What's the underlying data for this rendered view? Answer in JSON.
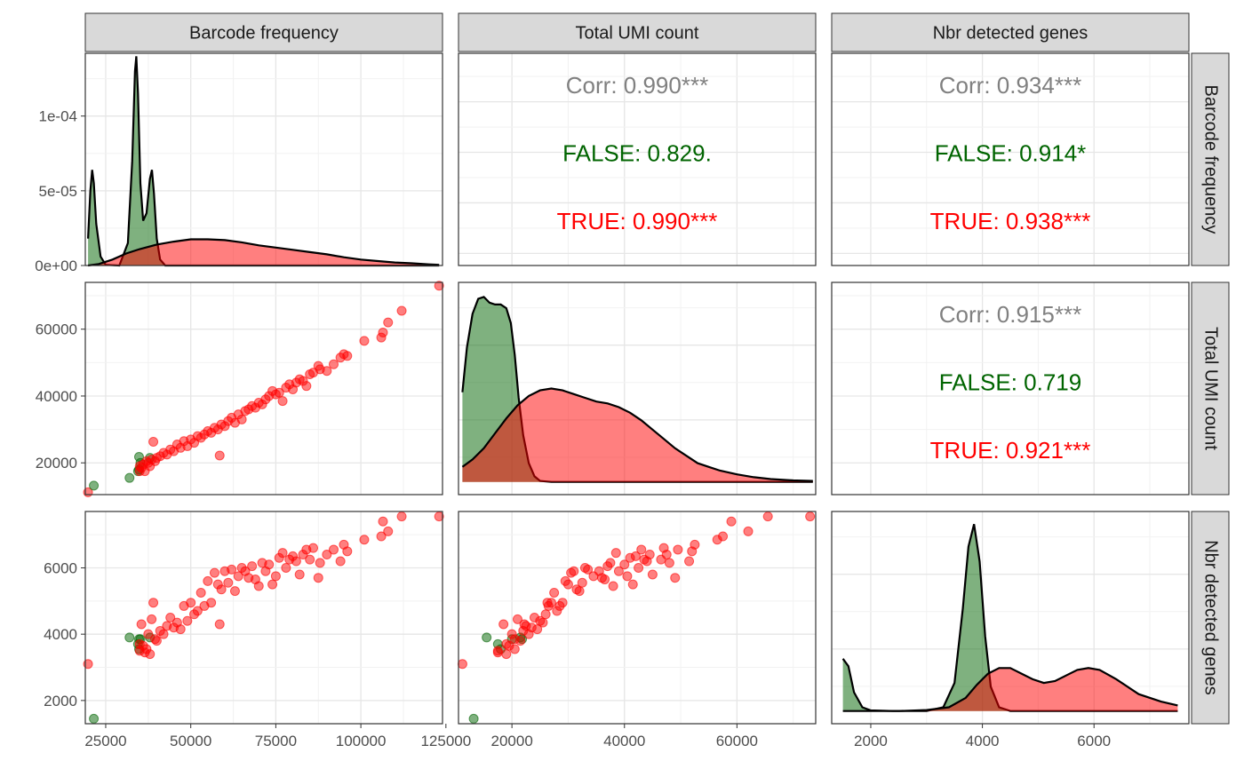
{
  "chart_data": {
    "type": "scatter",
    "variables": [
      "Barcode frequency",
      "Total UMI count",
      "Nbr detected genes"
    ],
    "groups": [
      {
        "name": "FALSE",
        "color": "#006400"
      },
      {
        "name": "TRUE",
        "color": "#ff0000"
      }
    ],
    "ranges": {
      "Barcode frequency": [
        19000,
        124000
      ],
      "Total UMI count": [
        10500,
        74000
      ],
      "Nbr detected genes": [
        1300,
        7700
      ]
    },
    "density_range": [
      0,
      0.000142
    ],
    "axis_ticks": {
      "x": {
        "Barcode frequency": [
          "25000",
          "50000",
          "75000",
          "100000",
          "125000"
        ],
        "Total UMI count": [
          "20000",
          "40000",
          "60000"
        ],
        "Nbr detected genes": [
          "2000",
          "4000",
          "6000"
        ]
      },
      "y": {
        "Barcode frequency": [
          "0e+00",
          "5e-05",
          "1e-04"
        ],
        "Total UMI count": [
          "20000",
          "40000",
          "60000"
        ],
        "Nbr detected genes": [
          "2000",
          "4000",
          "6000"
        ]
      }
    },
    "tick_values": {
      "Barcode frequency": [
        25000,
        50000,
        75000,
        100000,
        125000
      ],
      "Total UMI count": [
        20000,
        40000,
        60000
      ],
      "Nbr detected genes": [
        2000,
        4000,
        6000
      ],
      "density": [
        0,
        5e-05,
        0.0001
      ]
    },
    "correlations": [
      {
        "row": 0,
        "col": 1,
        "lines": [
          {
            "text": "Corr: 0.990***",
            "color": "#808080"
          },
          {
            "text": "FALSE: 0.829.",
            "color": "#006400"
          },
          {
            "text": "TRUE: 0.990***",
            "color": "#ff0000"
          }
        ]
      },
      {
        "row": 0,
        "col": 2,
        "lines": [
          {
            "text": "Corr: 0.934***",
            "color": "#808080"
          },
          {
            "text": "FALSE: 0.914*",
            "color": "#006400"
          },
          {
            "text": "TRUE: 0.938***",
            "color": "#ff0000"
          }
        ]
      },
      {
        "row": 1,
        "col": 2,
        "lines": [
          {
            "text": "Corr: 0.915***",
            "color": "#808080"
          },
          {
            "text": "FALSE: 0.719",
            "color": "#006400"
          },
          {
            "text": "TRUE: 0.921***",
            "color": "#ff0000"
          }
        ]
      }
    ],
    "densities": {
      "Barcode frequency": {
        "FALSE": [
          [
            19800,
            1.8e-05
          ],
          [
            20500,
            5e-05
          ],
          [
            21000,
            6.4e-05
          ],
          [
            21500,
            5.5e-05
          ],
          [
            22200,
            2.8e-05
          ],
          [
            23500,
            6e-06
          ],
          [
            25000,
            5e-07
          ],
          [
            29000,
            0.0
          ],
          [
            31500,
            1.5e-05
          ],
          [
            32800,
            7e-05
          ],
          [
            33600,
            0.00013
          ],
          [
            34000,
            0.00014
          ],
          [
            34500,
            0.000115
          ],
          [
            35200,
            5.5e-05
          ],
          [
            36000,
            3e-05
          ],
          [
            37000,
            3.5e-05
          ],
          [
            38000,
            5.8e-05
          ],
          [
            38600,
            6.4e-05
          ],
          [
            39200,
            4.8e-05
          ],
          [
            40000,
            1.8e-05
          ],
          [
            41000,
            4e-06
          ],
          [
            42500,
            0.0
          ],
          [
            123000,
            0.0
          ]
        ],
        "TRUE": [
          [
            19800,
            0.0
          ],
          [
            23000,
            1e-06
          ],
          [
            27000,
            4e-06
          ],
          [
            31000,
            8e-06
          ],
          [
            35000,
            1.1e-05
          ],
          [
            40000,
            1.4e-05
          ],
          [
            45000,
            1.6e-05
          ],
          [
            50000,
            1.75e-05
          ],
          [
            55000,
            1.75e-05
          ],
          [
            60000,
            1.7e-05
          ],
          [
            65000,
            1.55e-05
          ],
          [
            70000,
            1.35e-05
          ],
          [
            75000,
            1.2e-05
          ],
          [
            80000,
            1.05e-05
          ],
          [
            85000,
            9e-06
          ],
          [
            90000,
            7.5e-06
          ],
          [
            95000,
            5.5e-06
          ],
          [
            100000,
            4e-06
          ],
          [
            105000,
            3e-06
          ],
          [
            110000,
            2e-06
          ],
          [
            115000,
            1.5e-06
          ],
          [
            120000,
            8e-07
          ],
          [
            123000,
            5e-07
          ]
        ]
      },
      "Total UMI count": {
        "FALSE": [
          [
            11200,
            0.48
          ],
          [
            12000,
            0.72
          ],
          [
            13000,
            0.9
          ],
          [
            14000,
            0.98
          ],
          [
            15000,
            0.99
          ],
          [
            16000,
            0.96
          ],
          [
            17000,
            0.95
          ],
          [
            18000,
            0.95
          ],
          [
            19000,
            0.93
          ],
          [
            19800,
            0.85
          ],
          [
            20500,
            0.68
          ],
          [
            21200,
            0.45
          ],
          [
            22000,
            0.25
          ],
          [
            23000,
            0.1
          ],
          [
            24000,
            0.03
          ],
          [
            25000,
            0.005
          ],
          [
            27000,
            0.0
          ],
          [
            73500,
            0.0
          ]
        ],
        "TRUE": [
          [
            11200,
            0.08
          ],
          [
            13000,
            0.12
          ],
          [
            15000,
            0.18
          ],
          [
            17000,
            0.26
          ],
          [
            19000,
            0.34
          ],
          [
            21000,
            0.41
          ],
          [
            23000,
            0.46
          ],
          [
            25000,
            0.49
          ],
          [
            27000,
            0.5
          ],
          [
            29000,
            0.49
          ],
          [
            31000,
            0.47
          ],
          [
            33000,
            0.45
          ],
          [
            35000,
            0.43
          ],
          [
            37000,
            0.42
          ],
          [
            39000,
            0.4
          ],
          [
            41000,
            0.37
          ],
          [
            43000,
            0.33
          ],
          [
            45000,
            0.28
          ],
          [
            47000,
            0.23
          ],
          [
            49000,
            0.18
          ],
          [
            51000,
            0.14
          ],
          [
            53000,
            0.1
          ],
          [
            55000,
            0.08
          ],
          [
            57000,
            0.06
          ],
          [
            60000,
            0.04
          ],
          [
            63000,
            0.025
          ],
          [
            66000,
            0.015
          ],
          [
            70000,
            0.008
          ],
          [
            73500,
            0.005
          ]
        ]
      },
      "Nbr detected genes": {
        "FALSE": [
          [
            1500,
            0.28
          ],
          [
            1600,
            0.24
          ],
          [
            1700,
            0.1
          ],
          [
            1850,
            0.02
          ],
          [
            2000,
            0.003
          ],
          [
            2400,
            0.0
          ],
          [
            3000,
            0.0
          ],
          [
            3300,
            0.02
          ],
          [
            3500,
            0.15
          ],
          [
            3650,
            0.55
          ],
          [
            3750,
            0.88
          ],
          [
            3850,
            1.0
          ],
          [
            3950,
            0.8
          ],
          [
            4050,
            0.4
          ],
          [
            4150,
            0.13
          ],
          [
            4300,
            0.02
          ],
          [
            4500,
            0.0
          ],
          [
            7500,
            0.0
          ]
        ],
        "TRUE": [
          [
            1500,
            0.0
          ],
          [
            2500,
            0.0
          ],
          [
            3000,
            0.005
          ],
          [
            3400,
            0.02
          ],
          [
            3700,
            0.07
          ],
          [
            3900,
            0.14
          ],
          [
            4100,
            0.2
          ],
          [
            4300,
            0.23
          ],
          [
            4500,
            0.23
          ],
          [
            4700,
            0.2
          ],
          [
            4900,
            0.17
          ],
          [
            5100,
            0.15
          ],
          [
            5300,
            0.16
          ],
          [
            5500,
            0.19
          ],
          [
            5700,
            0.22
          ],
          [
            5900,
            0.23
          ],
          [
            6100,
            0.22
          ],
          [
            6400,
            0.17
          ],
          [
            6800,
            0.09
          ],
          [
            7200,
            0.05
          ],
          [
            7500,
            0.03
          ]
        ]
      }
    },
    "points": [
      {
        "group": "TRUE",
        "bf": 19800,
        "umi": 11200,
        "genes": 3100
      },
      {
        "group": "FALSE",
        "bf": 21500,
        "umi": 13200,
        "genes": 1450
      },
      {
        "group": "FALSE",
        "bf": 32000,
        "umi": 15500,
        "genes": 3900
      },
      {
        "group": "FALSE",
        "bf": 34500,
        "umi": 17500,
        "genes": 3700
      },
      {
        "group": "FALSE",
        "bf": 34800,
        "umi": 18000,
        "genes": 3550
      },
      {
        "group": "FALSE",
        "bf": 34800,
        "umi": 21800,
        "genes": 3850
      },
      {
        "group": "FALSE",
        "bf": 35200,
        "umi": 20000,
        "genes": 3850
      },
      {
        "group": "FALSE",
        "bf": 38000,
        "umi": 21500,
        "genes": 3900
      },
      {
        "group": "TRUE",
        "bf": 35000,
        "umi": 17500,
        "genes": 3500
      },
      {
        "group": "TRUE",
        "bf": 35000,
        "umi": 19000,
        "genes": 3700
      },
      {
        "group": "TRUE",
        "bf": 35500,
        "umi": 18500,
        "genes": 4300
      },
      {
        "group": "TRUE",
        "bf": 36000,
        "umi": 19500,
        "genes": 3650
      },
      {
        "group": "TRUE",
        "bf": 36500,
        "umi": 17500,
        "genes": 3450
      },
      {
        "group": "TRUE",
        "bf": 37000,
        "umi": 20500,
        "genes": 3550
      },
      {
        "group": "TRUE",
        "bf": 37500,
        "umi": 20000,
        "genes": 4000
      },
      {
        "group": "TRUE",
        "bf": 38000,
        "umi": 19000,
        "genes": 3400
      },
      {
        "group": "TRUE",
        "bf": 38500,
        "umi": 21000,
        "genes": 4450
      },
      {
        "group": "TRUE",
        "bf": 39000,
        "umi": 26300,
        "genes": 4950
      },
      {
        "group": "TRUE",
        "bf": 39500,
        "umi": 20500,
        "genes": 3850
      },
      {
        "group": "TRUE",
        "bf": 40000,
        "umi": 21500,
        "genes": 3800
      },
      {
        "group": "TRUE",
        "bf": 41000,
        "umi": 22000,
        "genes": 4100
      },
      {
        "group": "TRUE",
        "bf": 42000,
        "umi": 23000,
        "genes": 4000
      },
      {
        "group": "TRUE",
        "bf": 43000,
        "umi": 22500,
        "genes": 4250
      },
      {
        "group": "TRUE",
        "bf": 44000,
        "umi": 24000,
        "genes": 4500
      },
      {
        "group": "TRUE",
        "bf": 45000,
        "umi": 23500,
        "genes": 4200
      },
      {
        "group": "TRUE",
        "bf": 46000,
        "umi": 25500,
        "genes": 4350
      },
      {
        "group": "TRUE",
        "bf": 47000,
        "umi": 24500,
        "genes": 4150
      },
      {
        "group": "TRUE",
        "bf": 48000,
        "umi": 26500,
        "genes": 4850
      },
      {
        "group": "TRUE",
        "bf": 49000,
        "umi": 25000,
        "genes": 4400
      },
      {
        "group": "TRUE",
        "bf": 50000,
        "umi": 27000,
        "genes": 4950
      },
      {
        "group": "TRUE",
        "bf": 51000,
        "umi": 26000,
        "genes": 4600
      },
      {
        "group": "TRUE",
        "bf": 52000,
        "umi": 28000,
        "genes": 4700
      },
      {
        "group": "TRUE",
        "bf": 53000,
        "umi": 27500,
        "genes": 5250
      },
      {
        "group": "TRUE",
        "bf": 54000,
        "umi": 28500,
        "genes": 4850
      },
      {
        "group": "TRUE",
        "bf": 55000,
        "umi": 29500,
        "genes": 5600
      },
      {
        "group": "TRUE",
        "bf": 56000,
        "umi": 29000,
        "genes": 4950
      },
      {
        "group": "TRUE",
        "bf": 57000,
        "umi": 30500,
        "genes": 5850
      },
      {
        "group": "TRUE",
        "bf": 58000,
        "umi": 30000,
        "genes": 5500
      },
      {
        "group": "TRUE",
        "bf": 58500,
        "umi": 22200,
        "genes": 4300
      },
      {
        "group": "TRUE",
        "bf": 59000,
        "umi": 31500,
        "genes": 5350
      },
      {
        "group": "TRUE",
        "bf": 60000,
        "umi": 31000,
        "genes": 5900
      },
      {
        "group": "TRUE",
        "bf": 61000,
        "umi": 32500,
        "genes": 5550
      },
      {
        "group": "TRUE",
        "bf": 62000,
        "umi": 33500,
        "genes": 5950
      },
      {
        "group": "TRUE",
        "bf": 63000,
        "umi": 32000,
        "genes": 5300
      },
      {
        "group": "TRUE",
        "bf": 64000,
        "umi": 34500,
        "genes": 5750
      },
      {
        "group": "TRUE",
        "bf": 65000,
        "umi": 33000,
        "genes": 6000
      },
      {
        "group": "TRUE",
        "bf": 66000,
        "umi": 35500,
        "genes": 5900
      },
      {
        "group": "TRUE",
        "bf": 67000,
        "umi": 36000,
        "genes": 5700
      },
      {
        "group": "TRUE",
        "bf": 68000,
        "umi": 37000,
        "genes": 6050
      },
      {
        "group": "TRUE",
        "bf": 69000,
        "umi": 36500,
        "genes": 5650
      },
      {
        "group": "TRUE",
        "bf": 70000,
        "umi": 38000,
        "genes": 5450
      },
      {
        "group": "TRUE",
        "bf": 71000,
        "umi": 37500,
        "genes": 6150
      },
      {
        "group": "TRUE",
        "bf": 72000,
        "umi": 39000,
        "genes": 5900
      },
      {
        "group": "TRUE",
        "bf": 73000,
        "umi": 40000,
        "genes": 6100
      },
      {
        "group": "TRUE",
        "bf": 74000,
        "umi": 41500,
        "genes": 5500
      },
      {
        "group": "TRUE",
        "bf": 75000,
        "umi": 40500,
        "genes": 5750
      },
      {
        "group": "TRUE",
        "bf": 76000,
        "umi": 41000,
        "genes": 6300
      },
      {
        "group": "TRUE",
        "bf": 77000,
        "umi": 38500,
        "genes": 6450
      },
      {
        "group": "TRUE",
        "bf": 78000,
        "umi": 42500,
        "genes": 6000
      },
      {
        "group": "TRUE",
        "bf": 79000,
        "umi": 43500,
        "genes": 6250
      },
      {
        "group": "TRUE",
        "bf": 80000,
        "umi": 42000,
        "genes": 6350
      },
      {
        "group": "TRUE",
        "bf": 81000,
        "umi": 44000,
        "genes": 6200
      },
      {
        "group": "TRUE",
        "bf": 82000,
        "umi": 45000,
        "genes": 5800
      },
      {
        "group": "TRUE",
        "bf": 83000,
        "umi": 44500,
        "genes": 6400
      },
      {
        "group": "TRUE",
        "bf": 84000,
        "umi": 43000,
        "genes": 6550
      },
      {
        "group": "TRUE",
        "bf": 85000,
        "umi": 46500,
        "genes": 6250
      },
      {
        "group": "TRUE",
        "bf": 86000,
        "umi": 47000,
        "genes": 6600
      },
      {
        "group": "TRUE",
        "bf": 87500,
        "umi": 49000,
        "genes": 5700
      },
      {
        "group": "TRUE",
        "bf": 88000,
        "umi": 48000,
        "genes": 6150
      },
      {
        "group": "TRUE",
        "bf": 90000,
        "umi": 47500,
        "genes": 6400
      },
      {
        "group": "TRUE",
        "bf": 92000,
        "umi": 49500,
        "genes": 6550
      },
      {
        "group": "TRUE",
        "bf": 94000,
        "umi": 51500,
        "genes": 6200
      },
      {
        "group": "TRUE",
        "bf": 95000,
        "umi": 52500,
        "genes": 6700
      },
      {
        "group": "TRUE",
        "bf": 96000,
        "umi": 52000,
        "genes": 6500
      },
      {
        "group": "TRUE",
        "bf": 101000,
        "umi": 56500,
        "genes": 6850
      },
      {
        "group": "TRUE",
        "bf": 106000,
        "umi": 57500,
        "genes": 6950
      },
      {
        "group": "TRUE",
        "bf": 106500,
        "umi": 59000,
        "genes": 7400
      },
      {
        "group": "TRUE",
        "bf": 108000,
        "umi": 62000,
        "genes": 7100
      },
      {
        "group": "TRUE",
        "bf": 112000,
        "umi": 65500,
        "genes": 7550
      },
      {
        "group": "TRUE",
        "bf": 123000,
        "umi": 73000,
        "genes": 7550
      }
    ]
  }
}
